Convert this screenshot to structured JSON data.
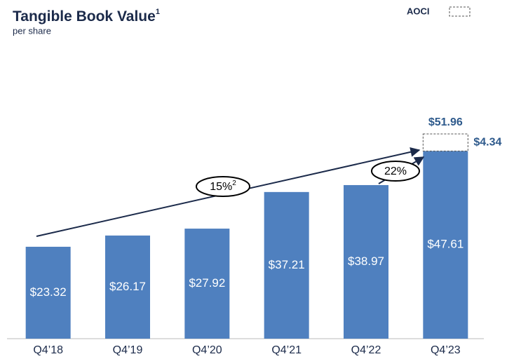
{
  "chart_data": {
    "type": "bar",
    "title": "Tangible Book Value",
    "title_note": "1",
    "subtitle": "per share",
    "categories": [
      "Q4’18",
      "Q4’19",
      "Q4’20",
      "Q4’21",
      "Q4’22",
      "Q4’23"
    ],
    "values": [
      23.32,
      26.17,
      27.92,
      37.21,
      38.97,
      47.61
    ],
    "value_labels": [
      "$23.32",
      "$26.17",
      "$27.92",
      "$37.21",
      "$38.97",
      "$47.61"
    ],
    "color": "#4f80bf",
    "aoci": {
      "name": "AOCI",
      "values": [
        null,
        null,
        null,
        null,
        null,
        4.34
      ],
      "value_labels": [
        null,
        null,
        null,
        null,
        null,
        "$4.34"
      ]
    },
    "totals": [
      null,
      null,
      null,
      null,
      null,
      51.96
    ],
    "total_labels": [
      null,
      null,
      null,
      null,
      null,
      "$51.96"
    ],
    "annotations": [
      {
        "text": "15%",
        "note": "2"
      },
      {
        "text": "22%"
      }
    ]
  }
}
